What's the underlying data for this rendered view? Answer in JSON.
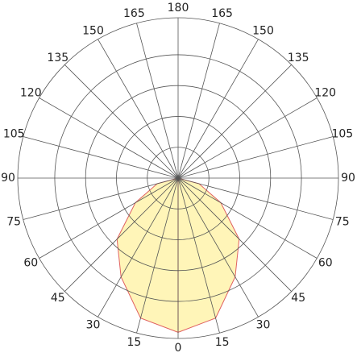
{
  "chart_data": {
    "type": "polar",
    "angles": [
      0,
      15,
      30,
      45,
      60,
      75,
      90,
      105,
      120,
      135,
      150,
      165,
      180
    ],
    "series": [
      {
        "color": "#e06060",
        "fill": "#fff5b8",
        "values": [
          5.0,
          4.7,
          3.7,
          2.8,
          1.6,
          0.7,
          0,
          0,
          0,
          0,
          0,
          0,
          0
        ]
      }
    ],
    "rlim": [
      0,
      5.2
    ],
    "rticks": [
      1,
      2,
      3,
      4
    ],
    "grid": true
  }
}
